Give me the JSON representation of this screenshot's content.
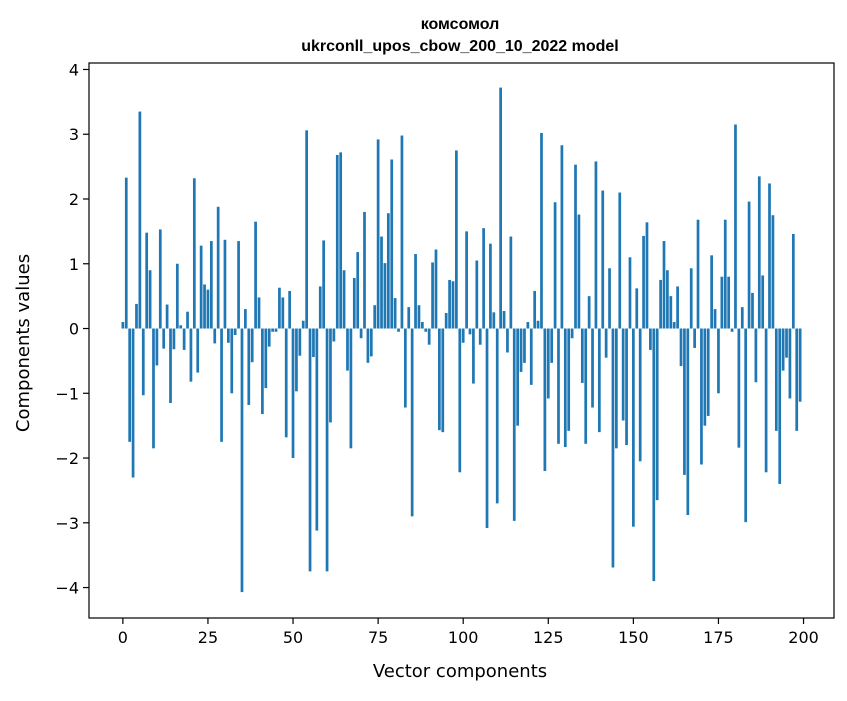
{
  "chart_data": {
    "type": "bar",
    "title": "комсомол",
    "subtitle": "ukrconll_upos_cbow_200_10_2022 model",
    "xlabel": "Vector components",
    "ylabel": "Components values",
    "xlim": [
      -9.95,
      208.95
    ],
    "ylim": [
      -4.47,
      4.1
    ],
    "xticks": [
      0,
      25,
      50,
      75,
      100,
      125,
      150,
      175,
      200
    ],
    "yticks": [
      -4,
      -3,
      -2,
      -1,
      0,
      1,
      2,
      3,
      4
    ],
    "xtick_labels": [
      "0",
      "25",
      "50",
      "75",
      "100",
      "125",
      "150",
      "175",
      "200"
    ],
    "ytick_labels": [
      "−4",
      "−3",
      "−2",
      "−1",
      "0",
      "1",
      "2",
      "3",
      "4"
    ],
    "grid": false,
    "bar_color": "#1f77b4",
    "x": [
      0,
      1,
      2,
      3,
      4,
      5,
      6,
      7,
      8,
      9,
      10,
      11,
      12,
      13,
      14,
      15,
      16,
      17,
      18,
      19,
      20,
      21,
      22,
      23,
      24,
      25,
      26,
      27,
      28,
      29,
      30,
      31,
      32,
      33,
      34,
      35,
      36,
      37,
      38,
      39,
      40,
      41,
      42,
      43,
      44,
      45,
      46,
      47,
      48,
      49,
      50,
      51,
      52,
      53,
      54,
      55,
      56,
      57,
      58,
      59,
      60,
      61,
      62,
      63,
      64,
      65,
      66,
      67,
      68,
      69,
      70,
      71,
      72,
      73,
      74,
      75,
      76,
      77,
      78,
      79,
      80,
      81,
      82,
      83,
      84,
      85,
      86,
      87,
      88,
      89,
      90,
      91,
      92,
      93,
      94,
      95,
      96,
      97,
      98,
      99,
      100,
      101,
      102,
      103,
      104,
      105,
      106,
      107,
      108,
      109,
      110,
      111,
      112,
      113,
      114,
      115,
      116,
      117,
      118,
      119,
      120,
      121,
      122,
      123,
      124,
      125,
      126,
      127,
      128,
      129,
      130,
      131,
      132,
      133,
      134,
      135,
      136,
      137,
      138,
      139,
      140,
      141,
      142,
      143,
      144,
      145,
      146,
      147,
      148,
      149,
      150,
      151,
      152,
      153,
      154,
      155,
      156,
      157,
      158,
      159,
      160,
      161,
      162,
      163,
      164,
      165,
      166,
      167,
      168,
      169,
      170,
      171,
      172,
      173,
      174,
      175,
      176,
      177,
      178,
      179,
      180,
      181,
      182,
      183,
      184,
      185,
      186,
      187,
      188,
      189,
      190,
      191,
      192,
      193,
      194,
      195,
      196,
      197,
      198,
      199
    ],
    "values": [
      0.1,
      2.33,
      -1.75,
      -2.3,
      0.38,
      3.35,
      -1.03,
      1.48,
      0.9,
      -1.85,
      -0.57,
      1.53,
      -0.31,
      0.37,
      -1.15,
      -0.32,
      1.0,
      0.05,
      -0.33,
      0.26,
      -0.82,
      2.32,
      -0.68,
      1.28,
      0.68,
      0.6,
      1.35,
      -0.23,
      1.88,
      -1.75,
      1.37,
      -0.22,
      -1.0,
      -0.1,
      1.35,
      -4.07,
      0.3,
      -1.18,
      -0.52,
      1.65,
      0.48,
      -1.32,
      -0.92,
      -0.28,
      -0.05,
      -0.05,
      0.63,
      0.48,
      -1.68,
      0.58,
      -2.0,
      -0.97,
      -0.42,
      0.12,
      3.06,
      -3.75,
      -0.44,
      -3.12,
      0.65,
      1.36,
      -3.75,
      -1.45,
      -0.2,
      2.68,
      2.72,
      0.9,
      -0.65,
      -1.85,
      0.78,
      1.18,
      -0.15,
      1.8,
      -0.53,
      -0.43,
      0.36,
      2.92,
      1.42,
      1.01,
      1.78,
      2.61,
      0.47,
      -0.05,
      2.98,
      -1.22,
      0.33,
      -2.9,
      1.15,
      0.36,
      0.1,
      -0.05,
      -0.25,
      1.02,
      1.22,
      -1.57,
      -1.6,
      0.24,
      0.75,
      0.73,
      2.75,
      -2.22,
      -0.22,
      1.5,
      -0.09,
      -0.85,
      1.05,
      -0.25,
      1.55,
      -3.08,
      1.31,
      0.25,
      -2.7,
      3.72,
      0.27,
      -0.37,
      1.42,
      -2.97,
      -1.5,
      -0.67,
      -0.53,
      0.1,
      -0.87,
      0.58,
      0.12,
      3.02,
      -2.2,
      -1.08,
      -0.53,
      1.95,
      -1.78,
      2.83,
      -1.83,
      -1.58,
      -0.15,
      2.53,
      1.76,
      -0.84,
      -1.78,
      0.5,
      -1.22,
      2.58,
      -1.6,
      2.13,
      -0.45,
      0.93,
      -3.69,
      -1.85,
      2.1,
      -1.42,
      -1.8,
      1.1,
      -3.06,
      0.62,
      -2.05,
      1.43,
      1.64,
      -0.33,
      -3.9,
      -2.65,
      0.75,
      1.35,
      0.9,
      0.5,
      0.1,
      0.65,
      -0.58,
      -2.26,
      -2.88,
      0.93,
      -0.3,
      1.68,
      -2.1,
      -1.5,
      -1.35,
      1.13,
      0.3,
      -1.0,
      0.8,
      1.68,
      0.8,
      -0.05,
      3.15,
      -1.84,
      0.33,
      -2.99,
      1.96,
      0.55,
      -0.83,
      2.35,
      0.82,
      -2.22,
      2.24,
      1.75,
      -1.58,
      -2.4,
      -0.65,
      -0.45,
      -1.08,
      1.46,
      -1.58,
      -1.13
    ]
  }
}
